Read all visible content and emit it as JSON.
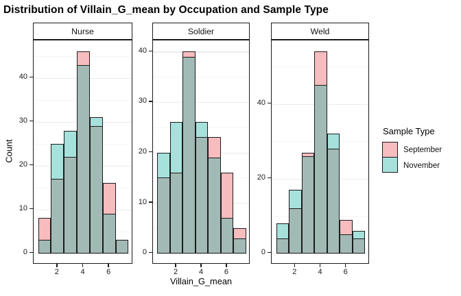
{
  "title": "Distribution of Villain_G_mean by Occupation and Sample Type",
  "axes": {
    "x_title": "Villain_G_mean",
    "y_title": "Count"
  },
  "legend": {
    "title": "Sample Type",
    "entries": [
      {
        "label": "September",
        "color": "#F7BCBE"
      },
      {
        "label": "November",
        "color": "#A6E1DC"
      }
    ]
  },
  "colors": {
    "september_fill": "#F7BCBE",
    "november_fill": "#A6E1DC",
    "overlap_fill": "#A2BAB6",
    "grid_major": "#EBEBEB",
    "grid_minor": "#F4F4F4",
    "border": "#1A1A1A"
  },
  "chart_data": {
    "type": "bar",
    "subtype": "overlaid-histogram-faceted",
    "title": "Distribution of Villain_G_mean by Occupation and Sample Type",
    "xlabel": "Villain_G_mean",
    "ylabel": "Count",
    "bin_centers": [
      1,
      2,
      3,
      4,
      5,
      6,
      7
    ],
    "bin_width": 1,
    "x_ticks": [
      2,
      4,
      6
    ],
    "x_range": [
      0.5,
      7.5
    ],
    "legend_position": "right",
    "grid": "horizontal-only",
    "facets": [
      {
        "label": "Nurse",
        "y_ticks": [
          0,
          10,
          20,
          30,
          40
        ],
        "ylim": [
          0,
          46
        ],
        "series": [
          {
            "name": "September",
            "values": [
              8,
              17,
              22,
              46,
              29,
              16,
              3
            ]
          },
          {
            "name": "November",
            "values": [
              3,
              25,
              28,
              43,
              31,
              9,
              3
            ]
          }
        ]
      },
      {
        "label": "Soldier",
        "y_ticks": [
          0,
          10,
          20,
          30,
          40
        ],
        "ylim": [
          0,
          40
        ],
        "series": [
          {
            "name": "September",
            "values": [
              15,
              16,
              40,
              23,
              23,
              16,
              5
            ]
          },
          {
            "name": "November",
            "values": [
              20,
              26,
              39,
              26,
              19,
              7,
              3
            ]
          }
        ]
      },
      {
        "label": "Weld",
        "y_ticks": [
          0,
          20,
          40
        ],
        "ylim": [
          0,
          54
        ],
        "series": [
          {
            "name": "September",
            "values": [
              4,
              12,
              27,
              54,
              28,
              9,
              4
            ]
          },
          {
            "name": "November",
            "values": [
              8,
              17,
              26,
              45,
              32,
              5,
              6
            ]
          }
        ]
      }
    ]
  }
}
